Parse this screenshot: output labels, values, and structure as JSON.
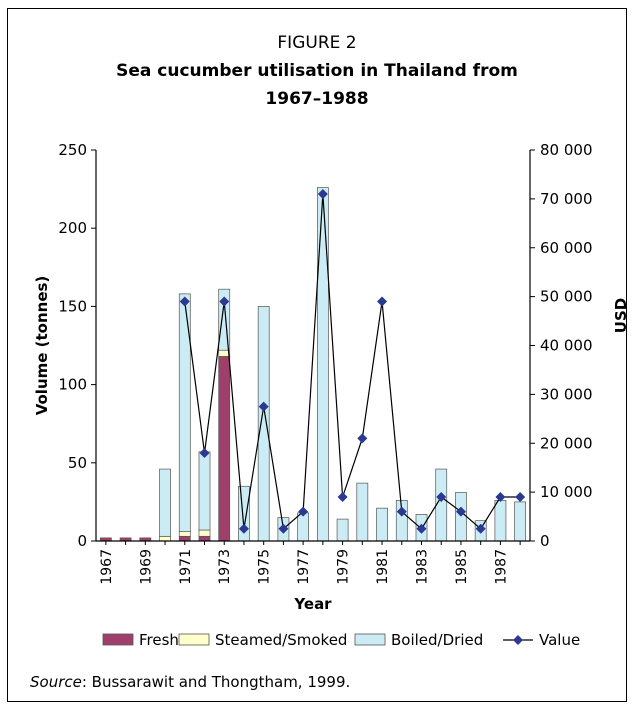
{
  "figure_label": "FIGURE 2",
  "title_line1": "Sea cucumber utilisation in Thailand from",
  "title_line2": "1967–1988",
  "source_prefix": "Source",
  "source_rest": ": Bussarawit and Thongtham, 1999.",
  "chart_data": {
    "type": "bar",
    "xlabel": "Year",
    "ylabel": "Volume (tonnes)",
    "y2label": "USD",
    "ylim": [
      0,
      250
    ],
    "y2lim": [
      0,
      80000
    ],
    "yticks": [
      "0",
      "50",
      "100",
      "150",
      "200",
      "250"
    ],
    "y2ticks": [
      "0",
      "10 000",
      "20 000",
      "30 000",
      "40 000",
      "50 000",
      "60 000",
      "70 000",
      "80 000"
    ],
    "categories": [
      "1967",
      "1968",
      "1969",
      "1970",
      "1971",
      "1972",
      "1973",
      "1974",
      "1975",
      "1976",
      "1977",
      "1978",
      "1979",
      "1980",
      "1981",
      "1982",
      "1983",
      "1984",
      "1985",
      "1986",
      "1987",
      "1988"
    ],
    "xtick_labels": [
      "1967",
      "1969",
      "1971",
      "1973",
      "1975",
      "1977",
      "1979",
      "1981",
      "1983",
      "1985",
      "1987"
    ],
    "stacked": true,
    "series": [
      {
        "name": "Fresh",
        "color": "#A0406A",
        "values": [
          2,
          2,
          2,
          0,
          3,
          3,
          118,
          0,
          0,
          0,
          0,
          0,
          0,
          0,
          0,
          0,
          0,
          0,
          0,
          0,
          0,
          0
        ]
      },
      {
        "name": "Steamed/Smoked",
        "color": "#FFFFCC",
        "values": [
          0,
          0,
          0,
          3,
          3,
          4,
          4,
          0,
          0,
          0,
          0,
          0,
          0,
          0,
          0,
          0,
          0,
          0,
          0,
          0,
          0,
          0
        ]
      },
      {
        "name": "Boiled/Dried",
        "color": "#CCECF5",
        "values": [
          0,
          0,
          0,
          43,
          152,
          50,
          39,
          35,
          150,
          15,
          18,
          226,
          14,
          37,
          21,
          26,
          17,
          46,
          31,
          13,
          26,
          25
        ]
      }
    ],
    "line_series": {
      "name": "Value",
      "color": "#2B3990",
      "axis": "right",
      "x": [
        "1971",
        "1972",
        "1973",
        "1974",
        "1975",
        "1976",
        "1977",
        "1978",
        "1979",
        "1980",
        "1981",
        "1982",
        "1983",
        "1984",
        "1985",
        "1986",
        "1987",
        "1988"
      ],
      "values": [
        49000,
        18000,
        49000,
        2500,
        27500,
        2500,
        6000,
        71000,
        9000,
        21000,
        49000,
        6000,
        2500,
        9000,
        6000,
        2500,
        9000,
        9000
      ]
    },
    "legend": "bottom"
  }
}
